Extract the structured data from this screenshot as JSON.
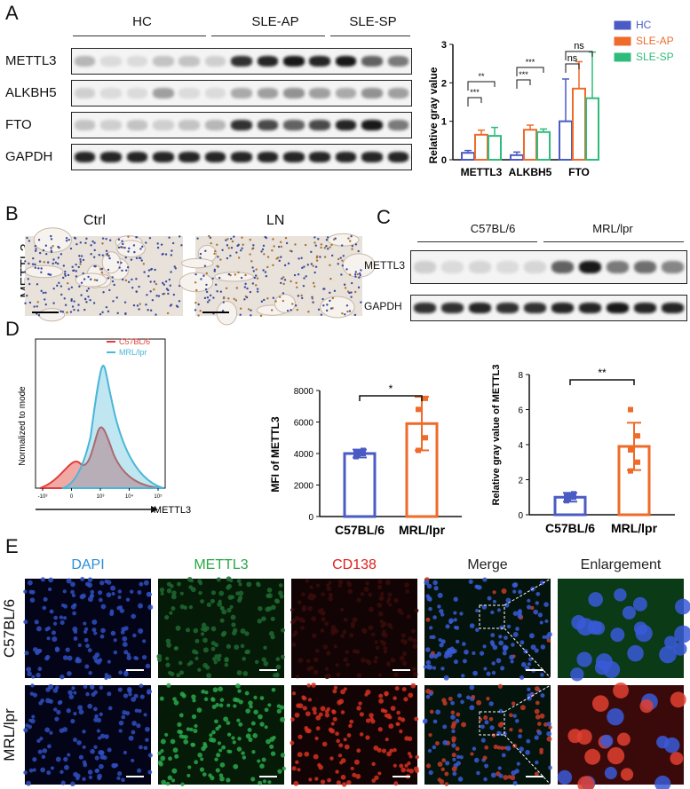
{
  "panels": {
    "A": "A",
    "B": "B",
    "C": "C",
    "D": "D",
    "E": "E"
  },
  "panelA": {
    "groups": [
      "HC",
      "SLE-AP",
      "SLE-SP"
    ],
    "rows": [
      "METTL3",
      "ALKBH5",
      "FTO",
      "GAPDH"
    ]
  },
  "chartA": {
    "type": "bar",
    "ylabel": "Relative gray value",
    "categories": [
      "METTL3",
      "ALKBH5",
      "FTO"
    ],
    "ylim": [
      0,
      3
    ],
    "yticks": [
      "0",
      "1",
      "2",
      "3"
    ],
    "series": [
      {
        "name": "HC",
        "color": "#4a5bc4",
        "values": [
          0.18,
          0.12,
          1.0
        ],
        "err": [
          0.06,
          0.08,
          1.1
        ]
      },
      {
        "name": "SLE-AP",
        "color": "#ee6b2a",
        "values": [
          0.65,
          0.78,
          1.85
        ],
        "err": [
          0.12,
          0.12,
          0.7
        ]
      },
      {
        "name": "SLE-SP",
        "color": "#2ebc7a",
        "values": [
          0.62,
          0.72,
          1.6
        ],
        "err": [
          0.22,
          0.08,
          1.2
        ]
      }
    ],
    "significance": [
      "***",
      "**",
      "***",
      "***",
      "ns",
      "ns"
    ]
  },
  "panelB": {
    "left_title": "Ctrl",
    "right_title": "LN",
    "ylabel": "METTL3"
  },
  "panelC": {
    "groups": [
      "C57BL/6",
      "MRL/lpr"
    ],
    "rows": [
      "METTL3",
      "GAPDH"
    ]
  },
  "histogram": {
    "ylabel": "Normalized to mode",
    "xlabel": "METTL3",
    "legend": [
      {
        "name": "C57BL/6",
        "color": "#e0403a"
      },
      {
        "name": "MRL/lpr",
        "color": "#4ab6d8"
      }
    ],
    "xticks": [
      "-10³",
      "0",
      "10³",
      "10⁴",
      "10⁵"
    ]
  },
  "chart_data": [
    {
      "type": "bar",
      "ylabel": "MFI of METTL3",
      "categories": [
        "C57BL/6",
        "MRL/lpr"
      ],
      "values": [
        4000,
        5900
      ],
      "err": [
        250,
        1700
      ],
      "points": [
        [
          3800,
          4000,
          4100,
          4200
        ],
        [
          4200,
          5000,
          6800,
          7500
        ]
      ],
      "ylim": [
        0,
        8000
      ],
      "yticks": [
        "0",
        "2000",
        "4000",
        "6000",
        "8000"
      ],
      "colors": [
        "#4a5bc4",
        "#ee6b2a"
      ],
      "significance": "*"
    },
    {
      "type": "bar",
      "ylabel": "Relative gray value of METTL3",
      "categories": [
        "C57BL/6",
        "MRL/lpr"
      ],
      "values": [
        1.0,
        3.9
      ],
      "err": [
        0.25,
        1.35
      ],
      "points": [
        [
          0.8,
          1.0,
          1.1,
          1.2
        ],
        [
          2.5,
          3.0,
          3.7,
          4.5,
          6.0
        ]
      ],
      "ylim": [
        0,
        8
      ],
      "yticks": [
        "0",
        "2",
        "4",
        "6",
        "8"
      ],
      "colors": [
        "#4a5bc4",
        "#ee6b2a"
      ],
      "significance": "**"
    }
  ],
  "panelE": {
    "columns": [
      "DAPI",
      "METTL3",
      "CD138",
      "Merge",
      "Enlargement"
    ],
    "column_colors": [
      "#2a8fd6",
      "#27a844",
      "#e0201e",
      "#222222",
      "#222222"
    ],
    "rows": [
      "C57BL/6",
      "MRL/lpr"
    ]
  }
}
